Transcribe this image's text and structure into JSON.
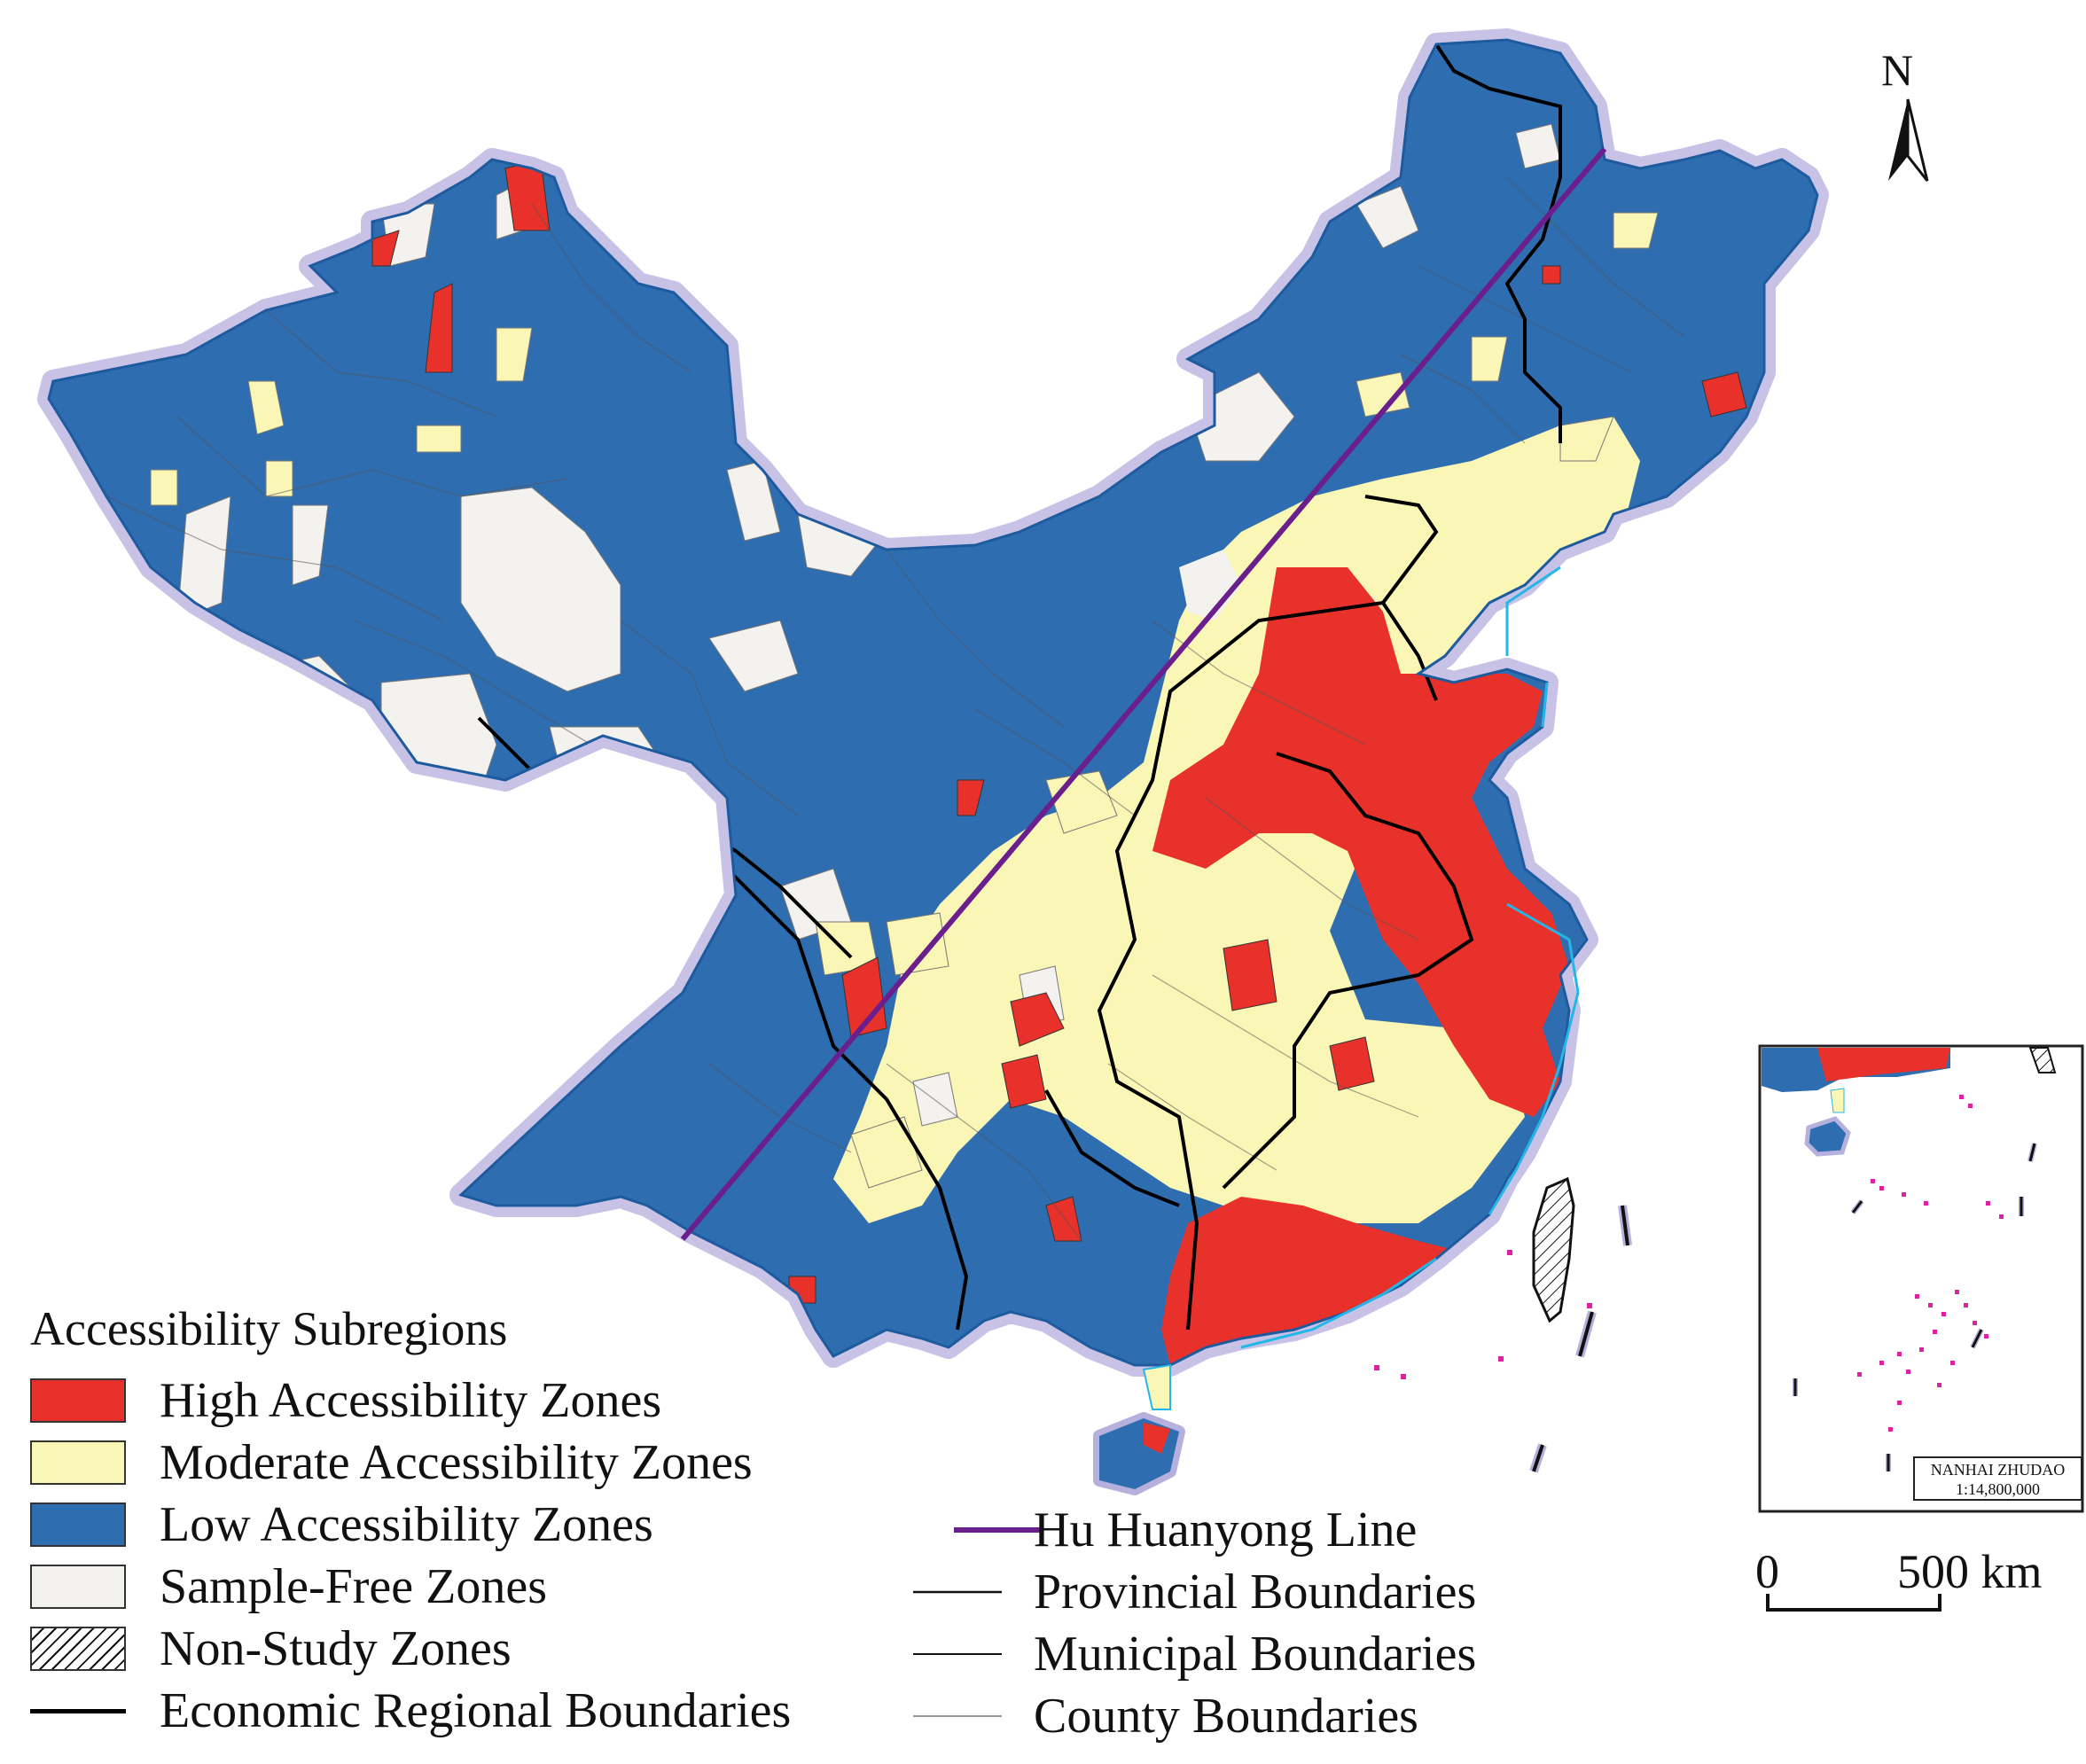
{
  "map": {
    "north_label": "N",
    "colors": {
      "high": "#e8312b",
      "moderate": "#faf6b6",
      "low": "#2e6db0",
      "sample_free": "#f4f2ef",
      "halo": "#b6b0dc",
      "hu_line": "#6b1f8c",
      "coast": "#25b6e8",
      "islands": "#e020a0"
    }
  },
  "legend": {
    "title": "Accessibility Subregions",
    "items": [
      {
        "label": "High Accessibility Zones",
        "color": "#e8312b"
      },
      {
        "label": "Moderate Accessibility Zones",
        "color": "#faf6b6"
      },
      {
        "label": "Low Accessibility Zones",
        "color": "#2e6db0"
      },
      {
        "label": "Sample-Free Zones",
        "color": "#f4f2ef"
      },
      {
        "label": "Non-Study Zones",
        "pattern": "hatch"
      },
      {
        "label": "Economic Regional Boundaries",
        "line": "thick-black"
      }
    ],
    "lines": [
      {
        "label": "Hu Huanyong Line",
        "color": "#6b1f8c"
      },
      {
        "label": "Provincial Boundaries"
      },
      {
        "label": "Municipal Boundaries"
      },
      {
        "label": "County Boundaries"
      }
    ]
  },
  "inset": {
    "caption_name": "NANHAI ZHUDAO",
    "caption_scale": "1:14,800,000"
  },
  "scale_bar": {
    "start": "0",
    "end": "500 km"
  }
}
